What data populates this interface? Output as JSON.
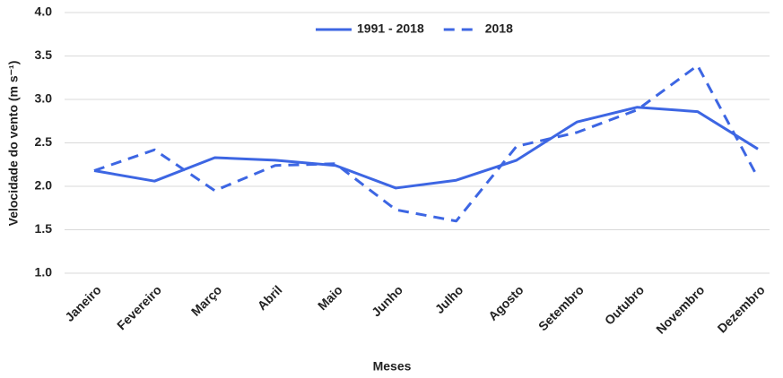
{
  "chart_data": {
    "type": "line",
    "x_label": "Meses",
    "y_label": "Velocidade do vento (m s⁻¹)",
    "categories": [
      "Janeiro",
      "Fevereiro",
      "Março",
      "Abril",
      "Maio",
      "Junho",
      "Julho",
      "Agosto",
      "Setembro",
      "Outubro",
      "Novembro",
      "Dezembro"
    ],
    "series": [
      {
        "name": "1991 - 2018",
        "color": "#3d66e3",
        "dash": false,
        "values": [
          2.18,
          2.06,
          2.33,
          2.3,
          2.24,
          1.98,
          2.07,
          2.3,
          2.74,
          2.91,
          2.86,
          2.43
        ]
      },
      {
        "name": "2018",
        "color": "#3d66e3",
        "dash": true,
        "values": [
          2.18,
          2.42,
          1.95,
          2.24,
          2.26,
          1.73,
          1.6,
          2.46,
          2.62,
          2.88,
          3.39,
          2.1
        ]
      }
    ],
    "ylim": [
      1.0,
      4.0
    ],
    "yticks": [
      {
        "value": 1.0,
        "label": "1.0"
      },
      1.5,
      {
        "value": 2.0,
        "label": "2.0"
      },
      2.5,
      {
        "value": 3.0,
        "label": "3.0"
      },
      3.5,
      {
        "value": 4.0,
        "label": "4.0"
      }
    ],
    "grid": true,
    "legend": "top"
  }
}
